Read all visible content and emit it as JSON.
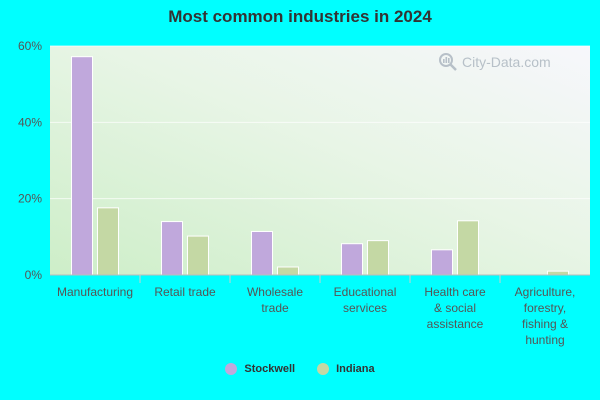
{
  "chart_data": {
    "type": "bar",
    "title": "Most common industries in 2024",
    "categories": [
      [
        "Manufacturing"
      ],
      [
        "Retail trade"
      ],
      [
        "Wholesale",
        "trade"
      ],
      [
        "Educational",
        "services"
      ],
      [
        "Health care",
        "& social",
        "assistance"
      ],
      [
        "Agriculture,",
        "forestry,",
        "fishing &",
        "hunting"
      ]
    ],
    "series": [
      {
        "name": "Stockwell",
        "color": "#c0a8dc",
        "values": [
          57.2,
          14.0,
          11.4,
          8.2,
          6.6,
          0.0
        ]
      },
      {
        "name": "Indiana",
        "color": "#c4d8a4",
        "values": [
          17.6,
          10.2,
          2.1,
          9.0,
          14.2,
          1.0
        ]
      }
    ],
    "ylim": [
      0,
      60
    ],
    "yticks": [
      0,
      20,
      40,
      60
    ],
    "ytick_labels": [
      "0%",
      "20%",
      "40%",
      "60%"
    ],
    "grid": true,
    "legend_position": "bottom-center"
  },
  "watermark": {
    "text": "City-Data.com",
    "icon": "magnifier-icon"
  }
}
